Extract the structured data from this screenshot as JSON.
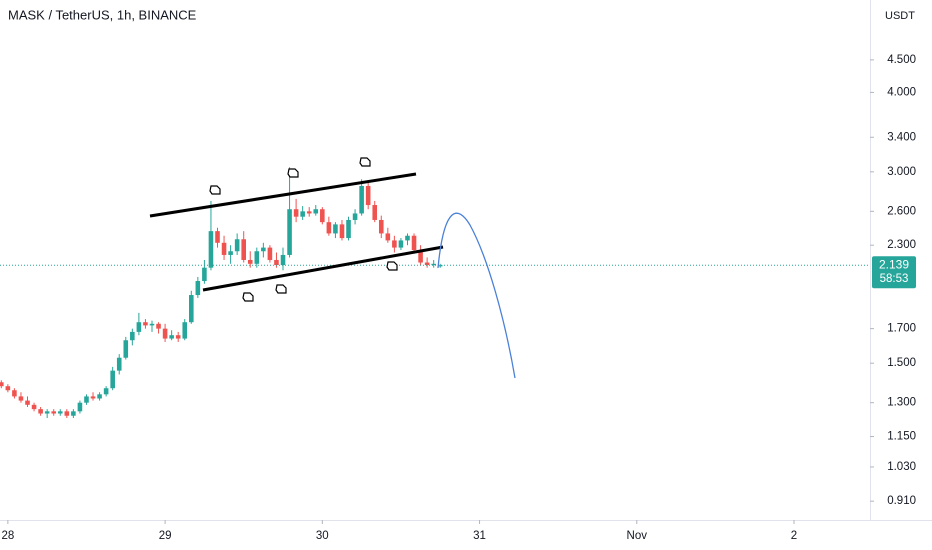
{
  "chart_data": {
    "type": "candlestick",
    "title": "MASK / TetherUS, 1h, BINANCE",
    "currency": "USDT",
    "x": [
      -1,
      0,
      1,
      2,
      3,
      4,
      5,
      6,
      7,
      8,
      9,
      10,
      11,
      12,
      13,
      14,
      15,
      16,
      17,
      18,
      19,
      20,
      21,
      22,
      23,
      24,
      25,
      26,
      27,
      28,
      29,
      30,
      31,
      32,
      33,
      34,
      35,
      36,
      37,
      38,
      39,
      40,
      41,
      42,
      43,
      44,
      45,
      46,
      47,
      48,
      49,
      50,
      51,
      52,
      53,
      54,
      55,
      56,
      57,
      58,
      59,
      60,
      61,
      62,
      63,
      64,
      65,
      66
    ],
    "open": [
      1.4,
      1.38,
      1.36,
      1.33,
      1.31,
      1.29,
      1.27,
      1.25,
      1.26,
      1.25,
      1.26,
      1.24,
      1.26,
      1.3,
      1.33,
      1.32,
      1.34,
      1.37,
      1.46,
      1.53,
      1.63,
      1.68,
      1.74,
      1.72,
      1.73,
      1.7,
      1.64,
      1.66,
      1.64,
      1.74,
      1.92,
      2.02,
      2.12,
      2.42,
      2.32,
      2.22,
      2.25,
      2.35,
      2.18,
      2.15,
      2.25,
      2.28,
      2.18,
      2.14,
      2.22,
      2.62,
      2.55,
      2.6,
      2.58,
      2.62,
      2.5,
      2.4,
      2.48,
      2.36,
      2.52,
      2.58,
      2.85,
      2.66,
      2.52,
      2.4,
      2.34,
      2.28,
      2.34,
      2.38,
      2.26,
      2.16,
      2.14,
      2.13
    ],
    "high": [
      1.41,
      1.39,
      1.37,
      1.35,
      1.33,
      1.3,
      1.28,
      1.27,
      1.27,
      1.27,
      1.27,
      1.27,
      1.31,
      1.34,
      1.35,
      1.35,
      1.38,
      1.48,
      1.55,
      1.65,
      1.7,
      1.8,
      1.76,
      1.75,
      1.74,
      1.73,
      1.69,
      1.68,
      1.76,
      1.95,
      2.05,
      2.18,
      2.7,
      2.45,
      2.38,
      2.3,
      2.4,
      2.42,
      2.25,
      2.28,
      2.32,
      2.3,
      2.24,
      2.28,
      3.05,
      2.72,
      2.65,
      2.64,
      2.66,
      2.64,
      2.55,
      2.5,
      2.52,
      2.55,
      2.62,
      2.92,
      2.9,
      2.7,
      2.56,
      2.45,
      2.38,
      2.36,
      2.4,
      2.4,
      2.3,
      2.2,
      2.18,
      2.15
    ],
    "low": [
      1.37,
      1.35,
      1.32,
      1.3,
      1.28,
      1.26,
      1.24,
      1.23,
      1.24,
      1.24,
      1.23,
      1.23,
      1.25,
      1.29,
      1.31,
      1.31,
      1.33,
      1.36,
      1.44,
      1.52,
      1.6,
      1.66,
      1.7,
      1.68,
      1.67,
      1.62,
      1.63,
      1.62,
      1.63,
      1.73,
      1.9,
      2.0,
      2.1,
      2.28,
      2.18,
      2.15,
      2.22,
      2.16,
      2.12,
      2.12,
      2.2,
      2.16,
      2.12,
      2.1,
      2.2,
      2.5,
      2.52,
      2.55,
      2.56,
      2.48,
      2.38,
      2.36,
      2.34,
      2.34,
      2.48,
      2.56,
      2.62,
      2.5,
      2.36,
      2.32,
      2.24,
      2.26,
      2.3,
      2.24,
      2.14,
      2.12,
      2.12,
      2.12
    ],
    "close": [
      1.38,
      1.36,
      1.33,
      1.31,
      1.29,
      1.27,
      1.25,
      1.26,
      1.25,
      1.26,
      1.24,
      1.26,
      1.3,
      1.33,
      1.32,
      1.34,
      1.37,
      1.46,
      1.53,
      1.63,
      1.68,
      1.74,
      1.72,
      1.73,
      1.7,
      1.64,
      1.66,
      1.64,
      1.74,
      1.92,
      2.02,
      2.12,
      2.42,
      2.32,
      2.22,
      2.25,
      2.35,
      2.18,
      2.15,
      2.25,
      2.28,
      2.18,
      2.14,
      2.22,
      2.62,
      2.55,
      2.6,
      2.58,
      2.62,
      2.5,
      2.4,
      2.48,
      2.36,
      2.52,
      2.58,
      2.85,
      2.66,
      2.52,
      2.4,
      2.34,
      2.28,
      2.34,
      2.38,
      2.26,
      2.16,
      2.14,
      2.15,
      2.139
    ],
    "up_color": "#26a69a",
    "down_color": "#ef5350",
    "log_scale": true,
    "xlim": [
      -1.2,
      131.6
    ],
    "xticks": [
      {
        "value": 0,
        "label": "28"
      },
      {
        "value": 24,
        "label": "29"
      },
      {
        "value": 48,
        "label": "30"
      },
      {
        "value": 72,
        "label": "31"
      },
      {
        "value": 96,
        "label": "Nov"
      },
      {
        "value": 120,
        "label": "2"
      }
    ],
    "ylim": [
      0.85,
      5.59
    ],
    "yticks": [
      {
        "value": 0.91,
        "label": "0.910"
      },
      {
        "value": 1.03,
        "label": "1.030"
      },
      {
        "value": 1.15,
        "label": "1.150"
      },
      {
        "value": 1.3,
        "label": "1.300"
      },
      {
        "value": 1.5,
        "label": "1.500"
      },
      {
        "value": 1.7,
        "label": "1.700"
      },
      {
        "value": 2.3,
        "label": "2.300"
      },
      {
        "value": 2.6,
        "label": "2.600"
      },
      {
        "value": 3,
        "label": "3.000"
      },
      {
        "value": 3.4,
        "label": "3.400"
      },
      {
        "value": 4,
        "label": "4.000"
      },
      {
        "value": 4.5,
        "label": "4.500"
      }
    ],
    "last_price": 2.139,
    "countdown": "58:53"
  }
}
